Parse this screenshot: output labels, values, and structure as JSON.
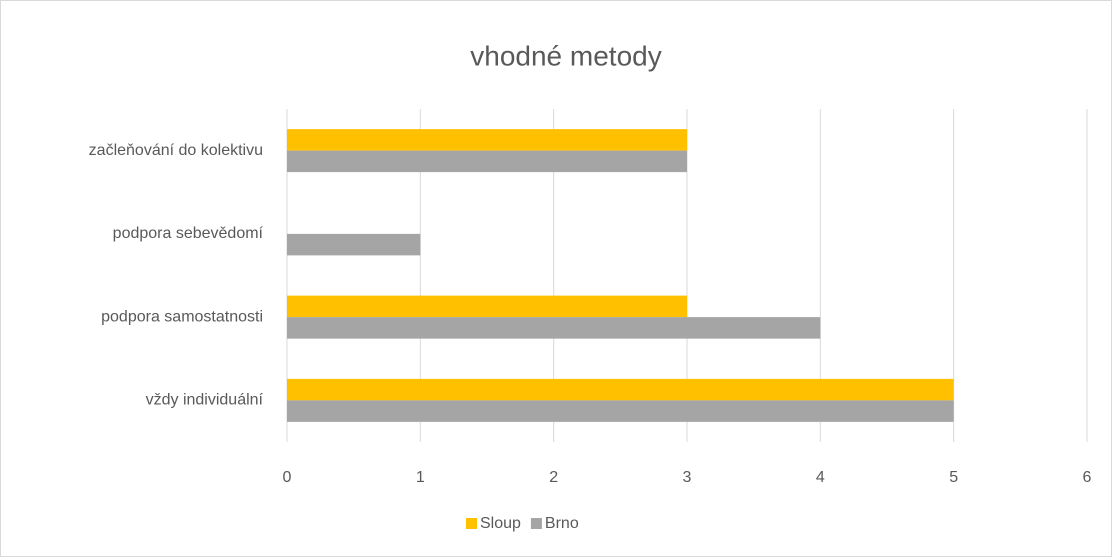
{
  "chart_data": {
    "type": "bar",
    "orientation": "horizontal",
    "title": "vhodné metody",
    "categories": [
      "vždy individuální",
      "podpora samostatnosti",
      "podpora sebevědomí",
      "začleňování do kolektivu"
    ],
    "series": [
      {
        "name": "Sloup",
        "color": "#ffc000",
        "values": [
          5,
          3,
          0,
          3
        ]
      },
      {
        "name": "Brno",
        "color": "#a5a5a5",
        "values": [
          5,
          4,
          1,
          3
        ]
      }
    ],
    "xlim": [
      0,
      6
    ],
    "xticks": [
      0,
      1,
      2,
      3,
      4,
      5,
      6
    ],
    "grid": true,
    "legend": "bottom"
  }
}
